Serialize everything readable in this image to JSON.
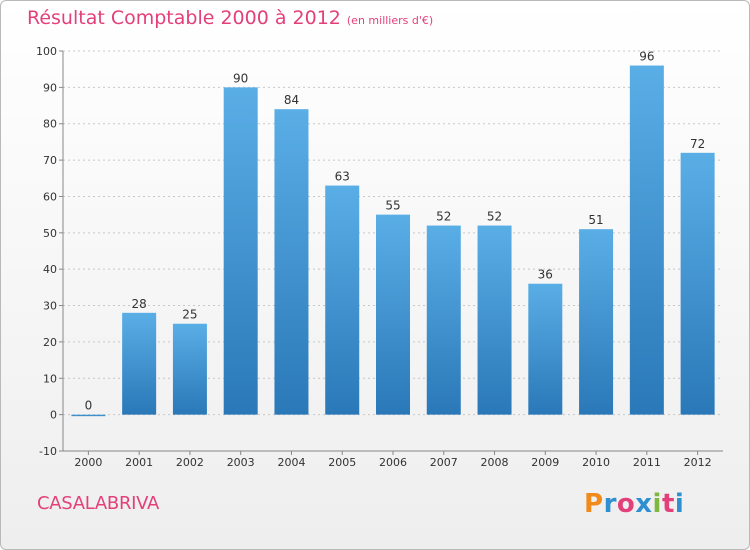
{
  "header": {
    "title": "Résultat Comptable 2000 à 2012",
    "subtitle": "(en milliers d'€)"
  },
  "footer": {
    "place": "CASALABRIVA",
    "logo": "Proxiti",
    "logo_colors": [
      "#f08a1c",
      "#2f8fd0",
      "#e3407a",
      "#2f8fd0",
      "#7fb840",
      "#e3407a",
      "#2f8fd0"
    ]
  },
  "colors": {
    "title": "#e3407a",
    "bar_light": "#5aaee6",
    "bar_dark": "#2a78b8",
    "grid": "#c8c8c8"
  },
  "chart_data": {
    "type": "bar",
    "categories": [
      "2000",
      "2001",
      "2002",
      "2003",
      "2004",
      "2005",
      "2006",
      "2007",
      "2008",
      "2009",
      "2010",
      "2011",
      "2012"
    ],
    "values": [
      0,
      28,
      25,
      90,
      84,
      63,
      55,
      52,
      52,
      36,
      51,
      96,
      72
    ],
    "data_labels": [
      "0",
      "28",
      "25",
      "90",
      "84",
      "63",
      "55",
      "52",
      "52",
      "36",
      "51",
      "96",
      "72"
    ],
    "title": "Résultat Comptable 2000 à 2012",
    "xlabel": "",
    "ylabel": "",
    "ylim": [
      -10,
      100
    ],
    "yticks": [
      -10,
      0,
      10,
      20,
      30,
      40,
      50,
      60,
      70,
      80,
      90,
      100
    ],
    "grid": "horizontal-dotted",
    "legend": "none"
  }
}
